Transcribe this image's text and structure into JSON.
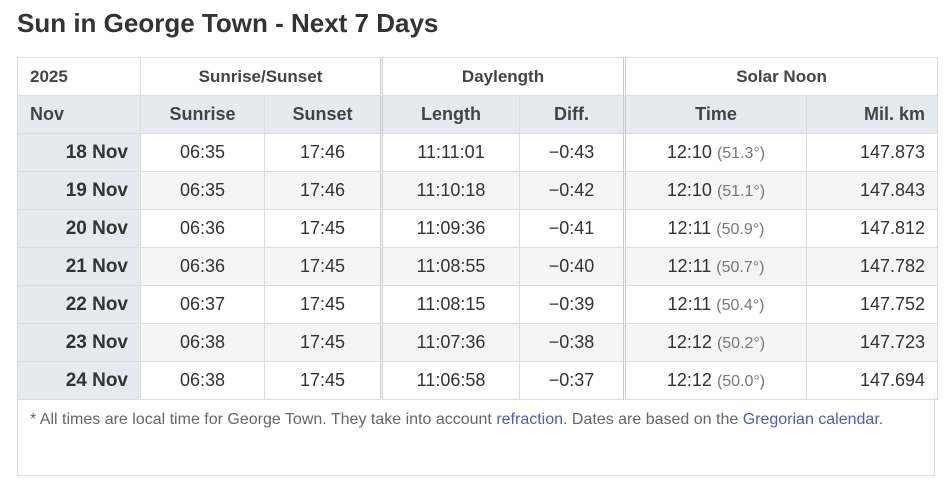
{
  "title": "Sun in George Town - Next 7 Days",
  "header1": {
    "year": "2025",
    "sunrise_sunset": "Sunrise/Sunset",
    "daylength": "Daylength",
    "solar_noon": "Solar Noon"
  },
  "header2": {
    "month": "Nov",
    "sunrise": "Sunrise",
    "sunset": "Sunset",
    "length": "Length",
    "diff": "Diff.",
    "time": "Time",
    "distance": "Mil. km"
  },
  "rows": [
    {
      "date": "18 Nov",
      "sunrise": "06:35",
      "sunset": "17:46",
      "length": "11:11:01",
      "diff": "−0:43",
      "noon": "12:10",
      "alt": "(51.3°)",
      "km": "147.873"
    },
    {
      "date": "19 Nov",
      "sunrise": "06:35",
      "sunset": "17:46",
      "length": "11:10:18",
      "diff": "−0:42",
      "noon": "12:10",
      "alt": "(51.1°)",
      "km": "147.843"
    },
    {
      "date": "20 Nov",
      "sunrise": "06:36",
      "sunset": "17:45",
      "length": "11:09:36",
      "diff": "−0:41",
      "noon": "12:11",
      "alt": "(50.9°)",
      "km": "147.812"
    },
    {
      "date": "21 Nov",
      "sunrise": "06:36",
      "sunset": "17:45",
      "length": "11:08:55",
      "diff": "−0:40",
      "noon": "12:11",
      "alt": "(50.7°)",
      "km": "147.782"
    },
    {
      "date": "22 Nov",
      "sunrise": "06:37",
      "sunset": "17:45",
      "length": "11:08:15",
      "diff": "−0:39",
      "noon": "12:11",
      "alt": "(50.4°)",
      "km": "147.752"
    },
    {
      "date": "23 Nov",
      "sunrise": "06:38",
      "sunset": "17:45",
      "length": "11:07:36",
      "diff": "−0:38",
      "noon": "12:12",
      "alt": "(50.2°)",
      "km": "147.723"
    },
    {
      "date": "24 Nov",
      "sunrise": "06:38",
      "sunset": "17:45",
      "length": "11:06:58",
      "diff": "−0:37",
      "noon": "12:12",
      "alt": "(50.0°)",
      "km": "147.694"
    }
  ],
  "footnote": {
    "text1": "* All times are local time for George Town. They take into account ",
    "link1": "refraction",
    "text2": ". Dates are based on the ",
    "link2": "Gregorian calendar",
    "text3": "."
  }
}
